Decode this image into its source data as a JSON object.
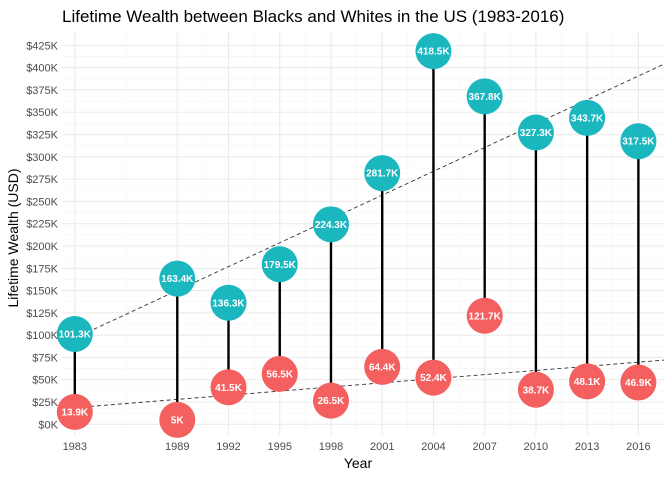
{
  "chart_data": {
    "type": "dumbbell",
    "title": "Lifetime Wealth between Blacks and Whites in the US (1983-2016)",
    "xlabel": "Year",
    "ylabel": "Lifetime Wealth (USD)",
    "x": [
      1983,
      1989,
      1992,
      1995,
      1998,
      2001,
      2004,
      2007,
      2010,
      2013,
      2016
    ],
    "x_ticks": [
      "1983",
      "1989",
      "1992",
      "1995",
      "1998",
      "2001",
      "2004",
      "2007",
      "2010",
      "2013",
      "2016"
    ],
    "xlim": [
      1982.25,
      2017.5
    ],
    "ylim": [
      -12000,
      440000
    ],
    "y_ticks": [
      0,
      25000,
      50000,
      75000,
      100000,
      125000,
      150000,
      175000,
      200000,
      225000,
      250000,
      275000,
      300000,
      325000,
      350000,
      375000,
      400000,
      425000
    ],
    "y_tick_labels": [
      "$0K",
      "$25K",
      "$50K",
      "$75K",
      "$100K",
      "$125K",
      "$150K",
      "$175K",
      "$200K",
      "$225K",
      "$250K",
      "$275K",
      "$300K",
      "$325K",
      "$350K",
      "$375K",
      "$400K",
      "$425K"
    ],
    "series": [
      {
        "color": "#1ab7bf",
        "values": [
          101300,
          163400,
          136300,
          179500,
          224300,
          281700,
          418500,
          367800,
          327300,
          343700,
          317500
        ],
        "labels": [
          "101.3K",
          "163.4K",
          "136.3K",
          "179.5K",
          "224.3K",
          "281.7K",
          "418.5K",
          "367.8K",
          "327.3K",
          "343.7K",
          "317.5K"
        ]
      },
      {
        "color": "#f4605f",
        "values": [
          13900,
          5000,
          41500,
          56500,
          26500,
          64400,
          52400,
          121700,
          38700,
          48100,
          46900
        ],
        "labels": [
          "13.9K",
          "5K",
          "41.5K",
          "56.5K",
          "26.5K",
          "64.4K",
          "52.4K",
          "121.7K",
          "38.7K",
          "48.1K",
          "46.9K"
        ]
      }
    ],
    "trend_lines": [
      {
        "x1": 1982.25,
        "y1": 90000,
        "x2": 2017.5,
        "y2": 404000,
        "style": "dashed"
      },
      {
        "x1": 1982.25,
        "y1": 17500,
        "x2": 2017.5,
        "y2": 72000,
        "style": "dashed"
      }
    ],
    "grid": true,
    "legend": "none",
    "colors": {
      "grid_major": "#ebebeb",
      "grid_minor": "#f5f5f5",
      "segment": "#000000"
    }
  }
}
